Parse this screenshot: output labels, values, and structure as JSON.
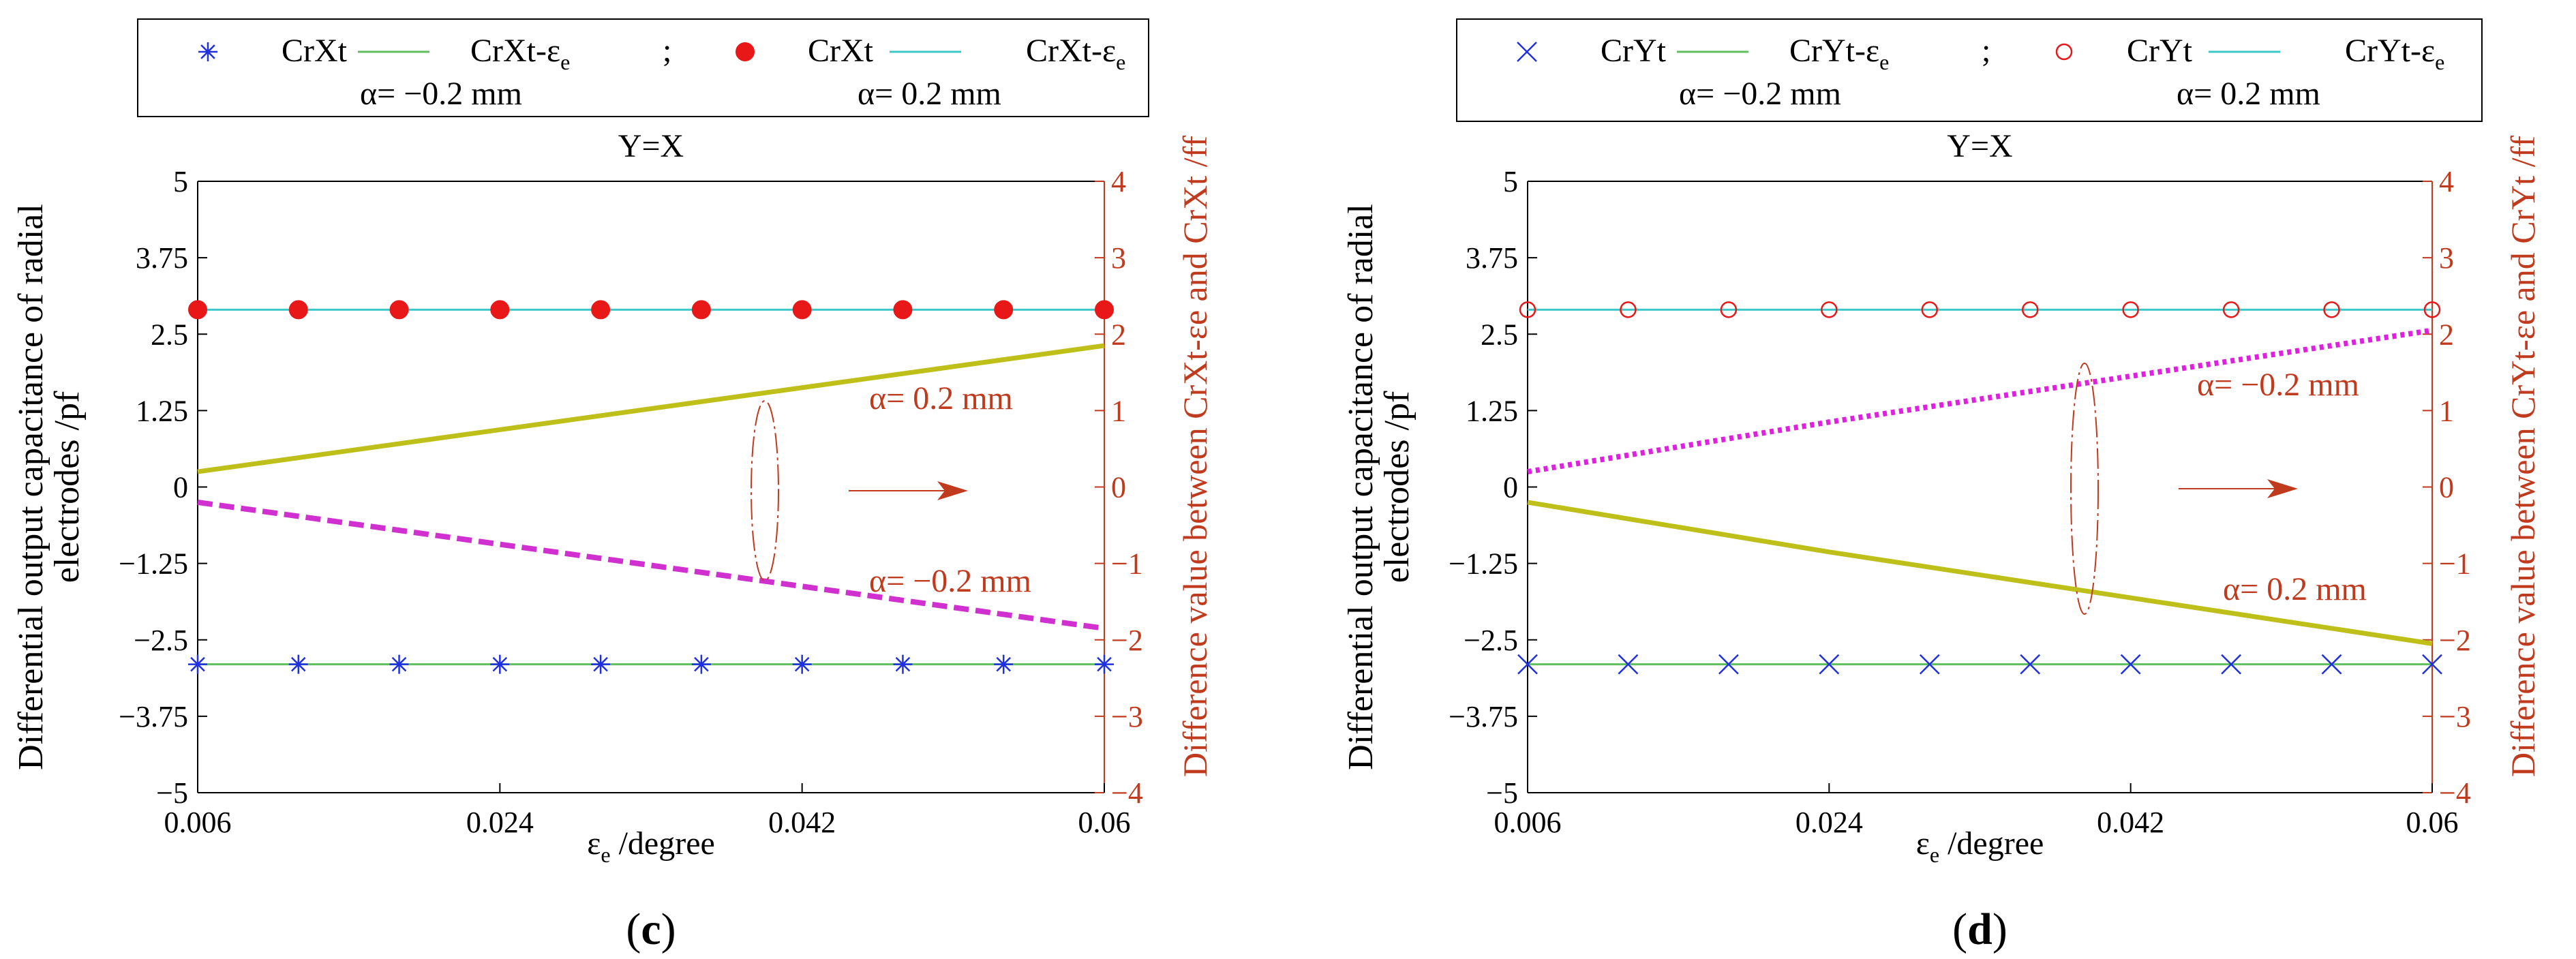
{
  "chart_data": [
    {
      "panel_label": "c",
      "type": "line",
      "title": "Y=X",
      "xlabel_main": "ε",
      "xlabel_sub": "e",
      "xlabel_suffix": " /degree",
      "ylabel_lines": [
        "Differential output capacitance of radial",
        "electrodes /pf"
      ],
      "y2label": "Difference value between CrXt-εe and CrXt /ff",
      "xlim": [
        0.006,
        0.06
      ],
      "xticks": [
        "0.006",
        "0.024",
        "0.042",
        "0.06"
      ],
      "ylim": [
        -5,
        5
      ],
      "yticks": [
        "5",
        "3.75",
        "2.5",
        "1.25",
        "0",
        "−1.25",
        "−2.5",
        "−3.75",
        "−5"
      ],
      "y2lim": [
        -4,
        4
      ],
      "y2ticks": [
        "4",
        "3",
        "2",
        "1",
        "0",
        "−1",
        "−2",
        "−3",
        "−4"
      ],
      "legend": {
        "row1": [
          "CrXt",
          "CrXt-ε",
          ";",
          "CrXt",
          "CrXt-ε"
        ],
        "sub": "e",
        "row2": [
          "α= −0.2 mm",
          "α= 0.2 mm"
        ],
        "colors": [
          "#2030e0",
          "#5fbf5f",
          "#e81818",
          "#3cc8c8"
        ]
      },
      "annotations": {
        "upper": "α= 0.2 mm",
        "lower": "α= −0.2 mm"
      },
      "marker_neg": "asterisk",
      "marker_pos": "filled-circle",
      "marker_neg_color": "#2030e0",
      "marker_pos_color": "#e81818",
      "line_neg_color": "#5fbf5f",
      "line_pos_color": "#3cc8c8",
      "neg_label_value": -2.9,
      "pos_label_value": 2.9,
      "marker_x": [
        0.006,
        0.012,
        0.018,
        0.024,
        0.03,
        0.036,
        0.042,
        0.048,
        0.054,
        0.06
      ],
      "left_series": [
        {
          "name": "CrXt (α= −0.2 mm)",
          "values": [
            -2.9,
            -2.9,
            -2.9,
            -2.9,
            -2.9,
            -2.9,
            -2.9,
            -2.9,
            -2.9,
            -2.9
          ]
        },
        {
          "name": "CrXt (α= 0.2 mm)",
          "values": [
            2.9,
            2.9,
            2.9,
            2.9,
            2.9,
            2.9,
            2.9,
            2.9,
            2.9,
            2.9
          ]
        }
      ],
      "diff_series": [
        {
          "name": "α= 0.2 mm",
          "color": "#bfbf1a",
          "style": "solid",
          "x": [
            0.006,
            0.024,
            0.042,
            0.06
          ],
          "values": [
            0.2,
            0.75,
            1.3,
            1.85
          ]
        },
        {
          "name": "α= −0.2 mm",
          "color": "#d030d0",
          "style": "dashed",
          "x": [
            0.006,
            0.024,
            0.042,
            0.06
          ],
          "values": [
            -0.2,
            -0.75,
            -1.3,
            -1.85
          ]
        }
      ]
    },
    {
      "panel_label": "d",
      "type": "line",
      "title": "Y=X",
      "xlabel_main": "ε",
      "xlabel_sub": "e",
      "xlabel_suffix": " /degree",
      "ylabel_lines": [
        "Differential output capacitance of radial",
        "electrodes /pf"
      ],
      "y2label": "Difference value between CrYt-εe and CrYt /ff",
      "xlim": [
        0.006,
        0.06
      ],
      "xticks": [
        "0.006",
        "0.024",
        "0.042",
        "0.06"
      ],
      "ylim": [
        -5,
        5
      ],
      "yticks": [
        "5",
        "3.75",
        "2.5",
        "1.25",
        "0",
        "−1.25",
        "−2.5",
        "−3.75",
        "−5"
      ],
      "y2lim": [
        -4,
        4
      ],
      "y2ticks": [
        "4",
        "3",
        "2",
        "1",
        "0",
        "−1",
        "−2",
        "−3",
        "−4"
      ],
      "legend": {
        "row1": [
          "CrYt",
          "CrYt-ε",
          ";",
          "CrYt",
          "CrYt-ε"
        ],
        "sub": "e",
        "row2": [
          "α= −0.2 mm",
          "α= 0.2 mm"
        ],
        "colors": [
          "#2030e0",
          "#5fbf5f",
          "#e81818",
          "#3cc8c8"
        ]
      },
      "annotations": {
        "upper": "α= −0.2 mm",
        "lower": "α= 0.2 mm"
      },
      "marker_neg": "x",
      "marker_pos": "open-circle",
      "marker_neg_color": "#2030e0",
      "marker_pos_color": "#e81818",
      "line_neg_color": "#5fbf5f",
      "line_pos_color": "#3cc8c8",
      "neg_label_value": -2.9,
      "pos_label_value": 2.9,
      "marker_x": [
        0.006,
        0.012,
        0.018,
        0.024,
        0.03,
        0.036,
        0.042,
        0.048,
        0.054,
        0.06
      ],
      "left_series": [
        {
          "name": "CrYt (α= −0.2 mm)",
          "values": [
            -2.9,
            -2.9,
            -2.9,
            -2.9,
            -2.9,
            -2.9,
            -2.9,
            -2.9,
            -2.9,
            -2.9
          ]
        },
        {
          "name": "CrYt (α= 0.2 mm)",
          "values": [
            2.9,
            2.9,
            2.9,
            2.9,
            2.9,
            2.9,
            2.9,
            2.9,
            2.9,
            2.9
          ]
        }
      ],
      "diff_series": [
        {
          "name": "α= −0.2 mm",
          "color": "#e020e0",
          "style": "dotted",
          "x": [
            0.006,
            0.024,
            0.042,
            0.06
          ],
          "values": [
            0.2,
            0.85,
            1.45,
            2.05
          ]
        },
        {
          "name": "α= 0.2 mm",
          "color": "#bfbf1a",
          "style": "solid",
          "x": [
            0.006,
            0.024,
            0.042,
            0.06
          ],
          "values": [
            -0.2,
            -0.85,
            -1.45,
            -2.05
          ]
        }
      ]
    }
  ]
}
